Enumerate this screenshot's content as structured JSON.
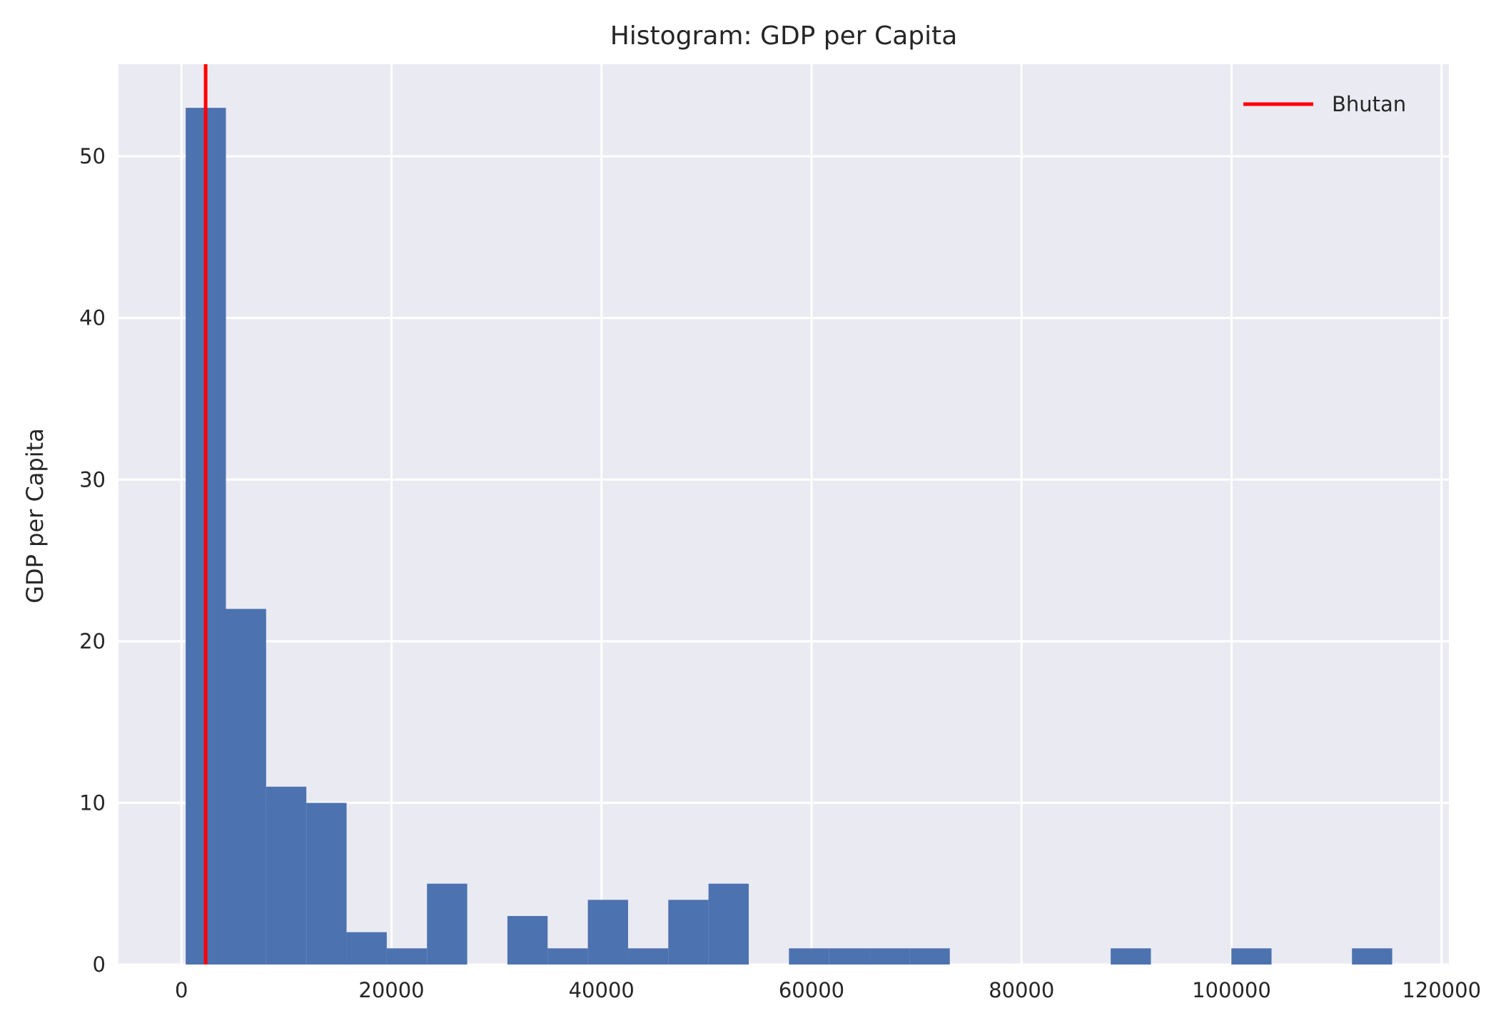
{
  "chart_data": {
    "type": "bar",
    "title": "Histogram: GDP per Capita",
    "xlabel": "",
    "ylabel": "GDP per Capita",
    "xlim": [
      -6000,
      120700
    ],
    "ylim": [
      0,
      55.7
    ],
    "xticks": [
      0,
      20000,
      40000,
      60000,
      80000,
      100000,
      120000
    ],
    "yticks": [
      0,
      10,
      20,
      30,
      40,
      50
    ],
    "bin_start": 400,
    "bin_width": 3830,
    "counts": [
      53,
      22,
      11,
      10,
      2,
      1,
      5,
      0,
      3,
      1,
      4,
      1,
      4,
      5,
      0,
      1,
      1,
      1,
      1,
      0,
      0,
      0,
      0,
      1,
      0,
      0,
      1,
      0,
      0,
      1
    ],
    "bar_color": "#4c72b0",
    "background_color": "#eaeaf2",
    "grid": true,
    "reference_line": {
      "name": "Bhutan",
      "x": 2300,
      "color": "#ff0000"
    },
    "legend": {
      "position": "top-right",
      "entries": [
        "Bhutan"
      ]
    }
  }
}
